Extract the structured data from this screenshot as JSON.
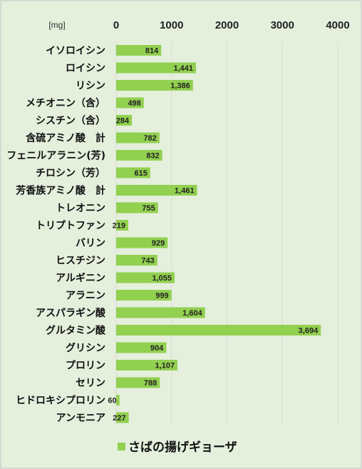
{
  "chart_data": {
    "type": "bar",
    "orientation": "horizontal",
    "unit": "[mg]",
    "xlim": [
      0,
      4000
    ],
    "xticks": [
      "0",
      "1000",
      "2000",
      "3000",
      "4000"
    ],
    "grid": true,
    "legend_position": "bottom",
    "categories": [
      "イソロイシン",
      "ロイシン",
      "リシン",
      "メチオニン（含）",
      "シスチン（含）",
      "含硫アミノ酸　計",
      "フェニルアラニン(芳)",
      "チロシン（芳）",
      "芳香族アミノ酸　計",
      "トレオニン",
      "トリプトファン",
      "バリン",
      "ヒスチジン",
      "アルギニン",
      "アラニン",
      "アスパラギン酸",
      "グルタミン酸",
      "グリシン",
      "プロリン",
      "セリン",
      "ヒドロキシプロリン",
      "アンモニア"
    ],
    "series": [
      {
        "name": "さばの揚げギョーザ",
        "color": "#92d050",
        "values": [
          814,
          1441,
          1386,
          498,
          284,
          782,
          832,
          615,
          1461,
          755,
          219,
          929,
          743,
          1055,
          999,
          1604,
          3694,
          904,
          1107,
          788,
          60,
          227
        ],
        "labels": [
          "814",
          "1,441",
          "1,386",
          "498",
          "284",
          "782",
          "832",
          "615",
          "1,461",
          "755",
          "219",
          "929",
          "743",
          "1,055",
          "999",
          "1,604",
          "3,694",
          "904",
          "1,107",
          "788",
          "60",
          "227"
        ]
      }
    ]
  }
}
